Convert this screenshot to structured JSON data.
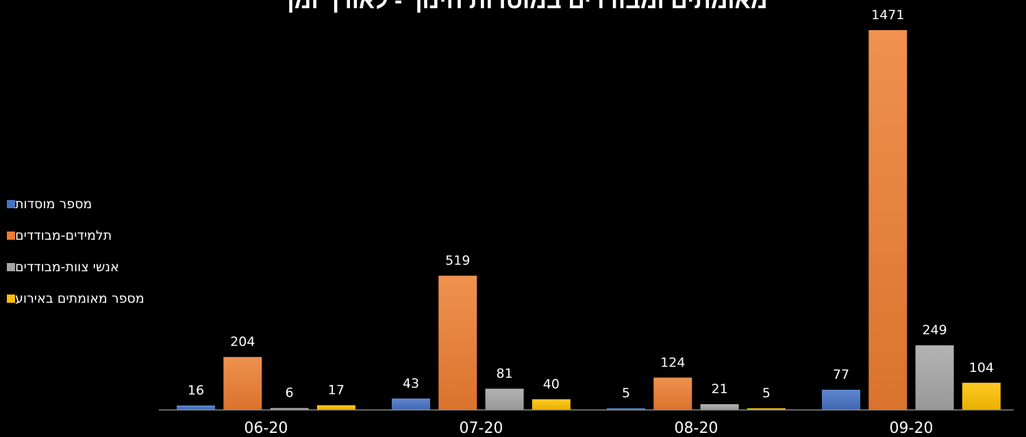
{
  "chart_data": {
    "type": "bar",
    "title": "מאומתים ומבודדים במוסדות חינוך - לאורך זמן",
    "categories": [
      "06-20",
      "07-20",
      "08-20",
      "09-20"
    ],
    "series": [
      {
        "name": "מספר מוסדות",
        "values": [
          16,
          43,
          5,
          77
        ],
        "color": "#4472C4"
      },
      {
        "name": "תלמידים-מבודדים",
        "values": [
          204,
          519,
          124,
          1471
        ],
        "color": "#ED7D31"
      },
      {
        "name": "אנשי צוות-מבודדים",
        "values": [
          6,
          81,
          21,
          249
        ],
        "color": "#A5A5A5"
      },
      {
        "name": "מספר מאומתים באירוע",
        "values": [
          17,
          40,
          5,
          104
        ],
        "color": "#FFC000"
      }
    ],
    "ylim": [
      0,
      1471
    ],
    "grid": false,
    "legend_position": "left",
    "data_labels": true
  }
}
